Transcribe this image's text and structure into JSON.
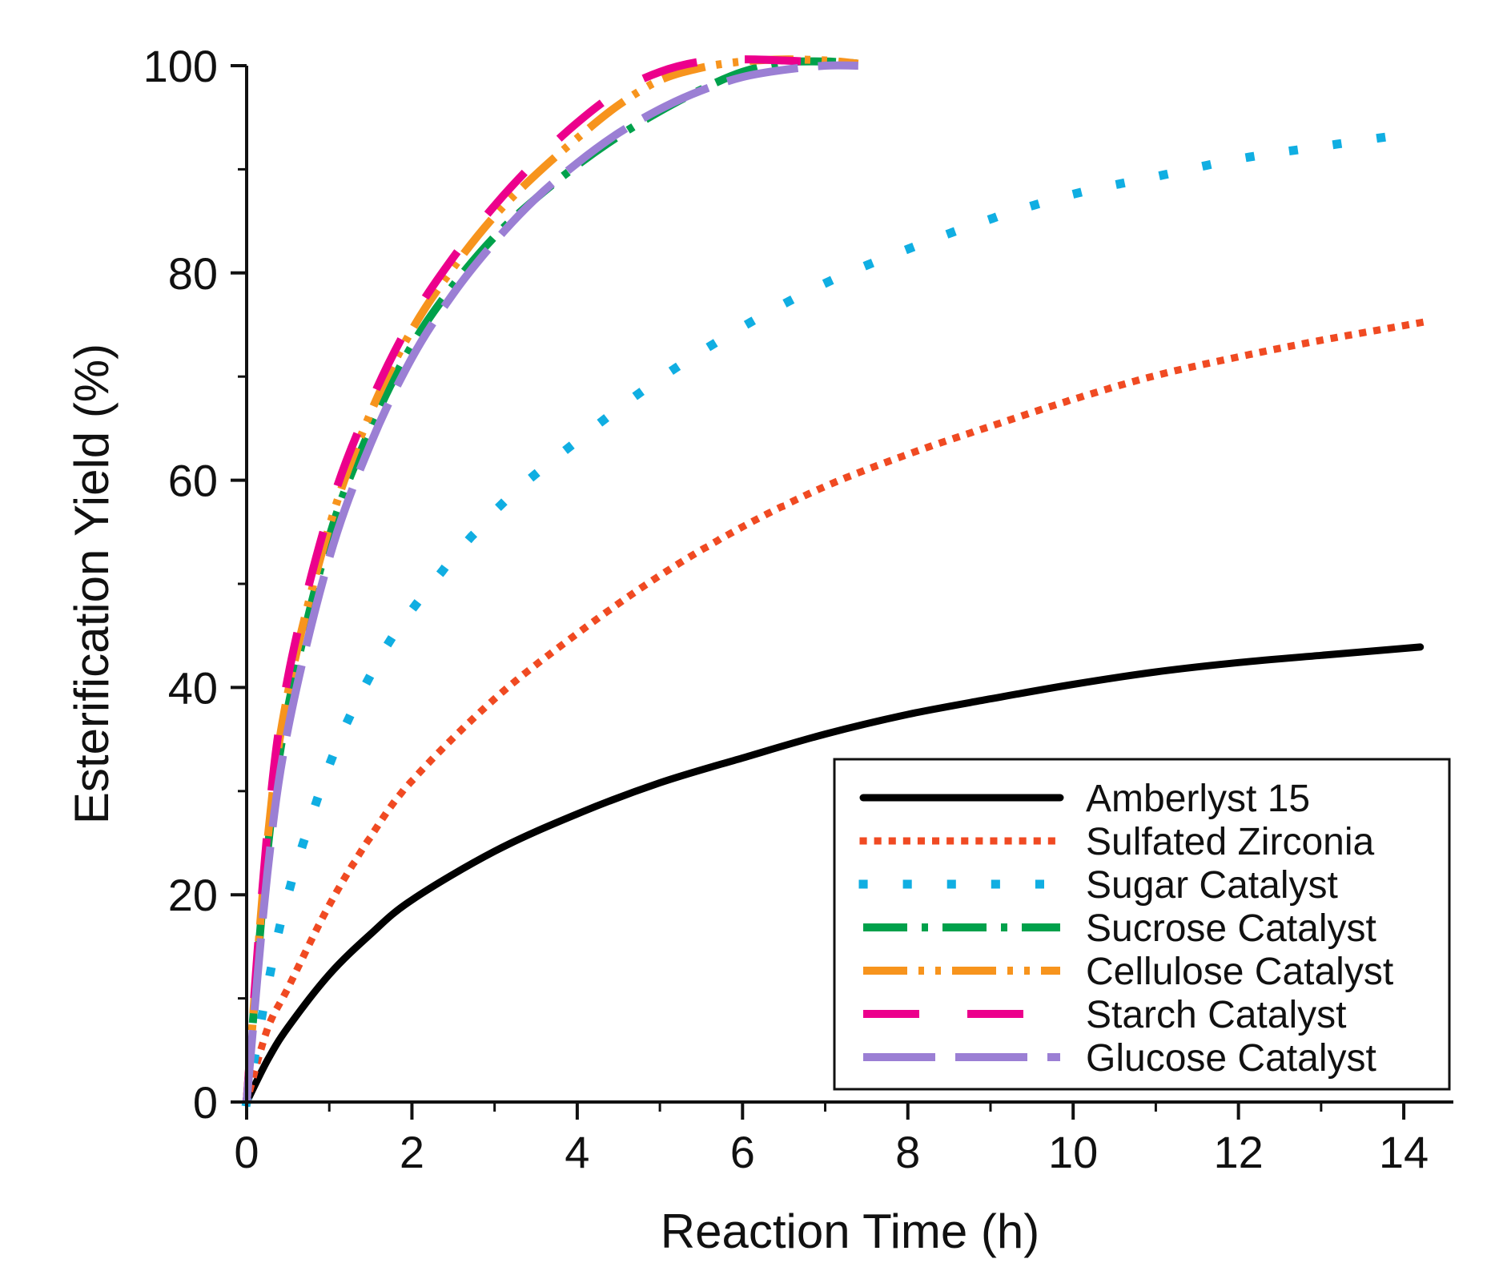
{
  "chart_data": {
    "type": "line",
    "title": "",
    "xlabel": "Reaction Time (h)",
    "ylabel": "Esterification Yield (%)",
    "xlim": [
      0,
      14.6
    ],
    "ylim": [
      0,
      100
    ],
    "xticks": [
      0,
      2,
      4,
      6,
      8,
      10,
      12,
      14
    ],
    "yticks": [
      0,
      20,
      40,
      60,
      80,
      100
    ],
    "xtick_labels": [
      "0",
      "2",
      "4",
      "6",
      "8",
      "10",
      "12",
      "14"
    ],
    "ytick_labels": [
      "0",
      "20",
      "40",
      "60",
      "80",
      "100"
    ],
    "legend_position": "bottom-right",
    "grid": false,
    "series": [
      {
        "name": "Amberlyst 15",
        "color": "#000000",
        "style": "solid",
        "x": [
          0,
          0.25,
          0.5,
          1,
          1.5,
          2,
          3,
          4,
          5,
          6,
          7,
          8,
          9,
          10,
          11,
          12,
          13,
          14.2
        ],
        "y": [
          0,
          4,
          7.2,
          12.3,
          16.2,
          19.5,
          24.2,
          27.8,
          30.8,
          33.2,
          35.5,
          37.4,
          38.9,
          40.3,
          41.5,
          42.4,
          43.1,
          43.9
        ]
      },
      {
        "name": "Sulfated Zirconia",
        "color": "#f04a22",
        "style": "dotted",
        "x": [
          0,
          0.25,
          0.5,
          1,
          1.5,
          2,
          3,
          4,
          5,
          6,
          7,
          8,
          9,
          10,
          11,
          12,
          13,
          14.2
        ],
        "y": [
          0,
          7,
          11,
          19,
          25.6,
          31,
          38.9,
          45.2,
          50.8,
          55.5,
          59.4,
          62.5,
          65.2,
          67.8,
          70.1,
          71.9,
          73.5,
          75.2
        ]
      },
      {
        "name": "Sugar Catalyst",
        "color": "#10aee2",
        "style": "dotted-sparse",
        "x": [
          0,
          0.25,
          0.5,
          1,
          1.5,
          2,
          3,
          4,
          5,
          6,
          7,
          8,
          9,
          10,
          11,
          12,
          13,
          14.2
        ],
        "y": [
          0,
          11,
          20,
          32.5,
          41.2,
          47.5,
          57,
          63.8,
          69.8,
          74.8,
          79,
          82.3,
          85.2,
          87.6,
          89.3,
          91,
          92.2,
          93.6
        ]
      },
      {
        "name": "Sucrose Catalyst",
        "color": "#00a14b",
        "style": "dash-dot",
        "x": [
          0,
          0.25,
          0.5,
          1,
          1.5,
          2,
          2.5,
          3,
          3.5,
          4,
          4.5,
          5,
          5.5,
          6,
          6.5,
          7,
          7.4
        ],
        "y": [
          0,
          24,
          38,
          54.5,
          65,
          73,
          78.8,
          83.5,
          87.2,
          90.4,
          93.2,
          95.6,
          97.7,
          99.4,
          100.3,
          100.4,
          100.2
        ]
      },
      {
        "name": "Cellulose Catalyst",
        "color": "#f7941d",
        "style": "dash-dot-dot",
        "x": [
          0,
          0.25,
          0.5,
          1,
          1.5,
          2,
          2.5,
          3,
          3.5,
          4,
          4.5,
          5,
          5.5,
          6,
          6.5,
          7,
          7.4
        ],
        "y": [
          0,
          25,
          39.5,
          55.5,
          66.5,
          74.5,
          80.5,
          85.5,
          89.5,
          93,
          96.2,
          98.6,
          99.8,
          100.4,
          100.6,
          100.5,
          100.2
        ]
      },
      {
        "name": "Starch Catalyst",
        "color": "#ec008c",
        "style": "long-dash",
        "x": [
          0,
          0.25,
          0.5,
          1,
          1.5,
          2,
          2.5,
          3,
          3.5,
          4,
          4.5,
          5,
          5.5,
          6,
          6.5,
          7
        ],
        "y": [
          0,
          26,
          41,
          57,
          67.5,
          75.5,
          81.5,
          86.5,
          90.8,
          94.5,
          97.5,
          99.4,
          100.4,
          100.6,
          100.5,
          100.3
        ]
      },
      {
        "name": "Glucose Catalyst",
        "color": "#9b7fd4",
        "style": "long-dash-wide",
        "x": [
          0,
          0.25,
          0.5,
          1,
          1.5,
          2,
          2.5,
          3,
          3.5,
          4,
          4.5,
          5,
          5.5,
          6,
          6.5,
          7,
          7.4
        ],
        "y": [
          0,
          22,
          36,
          52.5,
          63.5,
          71.8,
          78,
          83,
          87.2,
          90.6,
          93.5,
          95.8,
          97.6,
          98.9,
          99.6,
          100,
          100
        ]
      }
    ]
  }
}
